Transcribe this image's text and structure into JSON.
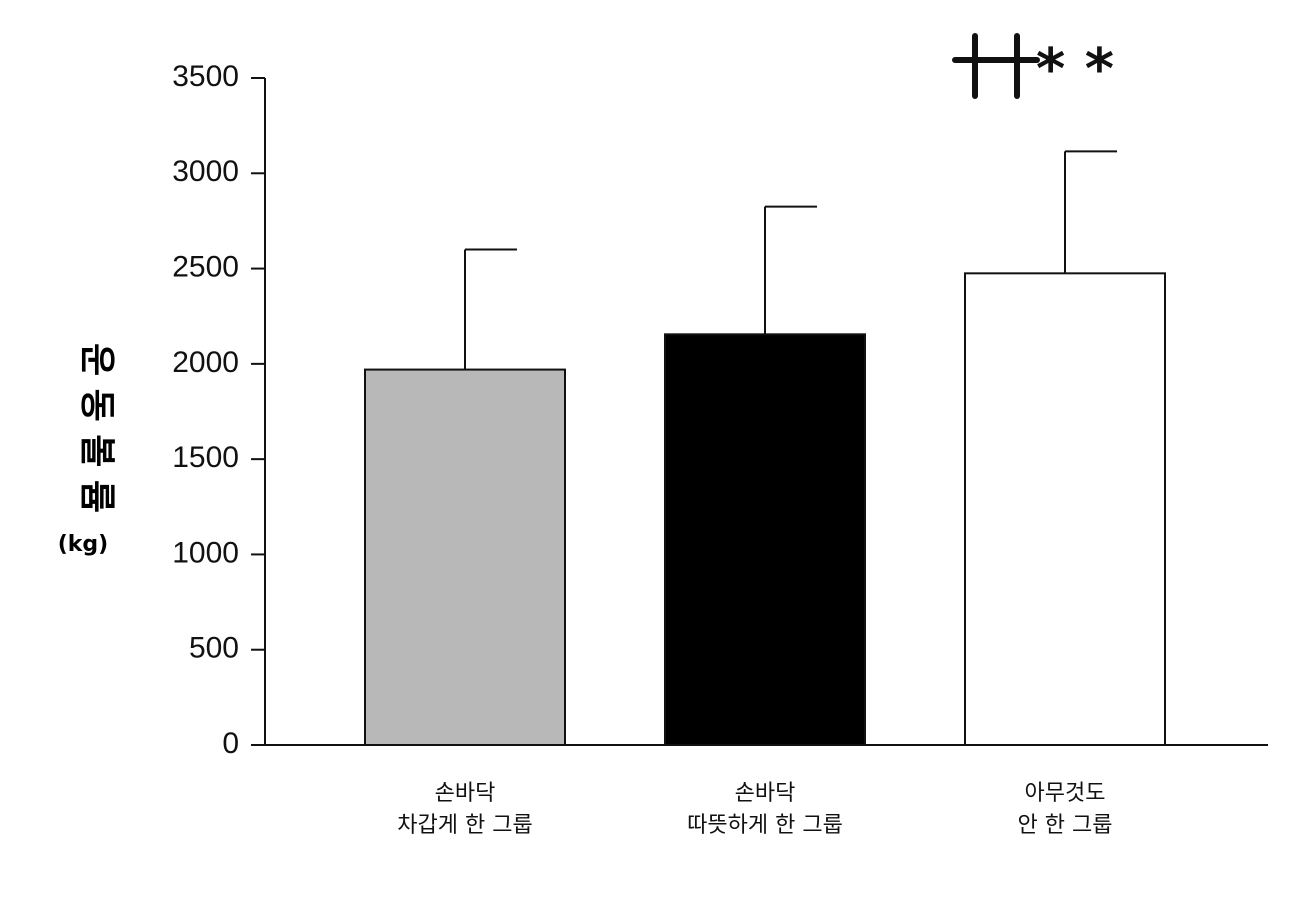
{
  "chart_data": {
    "type": "bar",
    "categories": [
      [
        "손바닥",
        "차갑게 한 그룹"
      ],
      [
        "손바닥",
        "따뜻하게 한 그룹"
      ],
      [
        "아무것도",
        "안 한 그룹"
      ]
    ],
    "values": [
      1970,
      2155,
      2475
    ],
    "error_upper": [
      2600,
      2825,
      3115
    ],
    "bar_colors": [
      "#b8b8b8",
      "#000000",
      "#ffffff"
    ],
    "bar_stroke": "#111111",
    "ylabel": "운 동 볼 륨",
    "ylabel_unit": "(kg)",
    "ylim": [
      0,
      3500
    ],
    "yticks": [
      0,
      500,
      1000,
      1500,
      2000,
      2500,
      3000,
      3500
    ],
    "grid": false,
    "annotations": [
      {
        "category_index": 2,
        "text": "* *",
        "dagger_count": 2
      }
    ]
  }
}
